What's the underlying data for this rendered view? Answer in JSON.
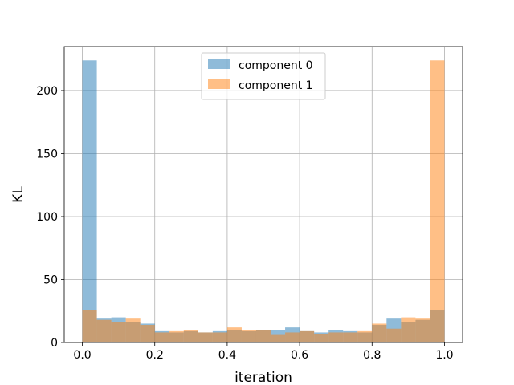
{
  "chart_data": {
    "type": "bar",
    "subtype": "histogram-overlay",
    "xlabel": "iteration",
    "ylabel": "KL",
    "xlim": [
      -0.05,
      1.05
    ],
    "ylim": [
      0,
      235
    ],
    "xticks": [
      0.0,
      0.2,
      0.4,
      0.6,
      0.8,
      1.0
    ],
    "xtick_labels": [
      "0.0",
      "0.2",
      "0.4",
      "0.6",
      "0.8",
      "1.0"
    ],
    "yticks": [
      0,
      50,
      100,
      150,
      200
    ],
    "ytick_labels": [
      "0",
      "50",
      "100",
      "150",
      "200"
    ],
    "grid": true,
    "legend_position": "top-center",
    "bin_edges": [
      0.0,
      0.04,
      0.08,
      0.12,
      0.16,
      0.2,
      0.24,
      0.28,
      0.32,
      0.36,
      0.4,
      0.44,
      0.48,
      0.52,
      0.56,
      0.6,
      0.64,
      0.68,
      0.72,
      0.76,
      0.8,
      0.84,
      0.88,
      0.92,
      0.96,
      1.0
    ],
    "series": [
      {
        "name": "component 0",
        "color": "#1f77b4",
        "values": [
          224,
          19,
          20,
          16,
          15,
          9,
          8,
          9,
          8,
          9,
          10,
          9,
          10,
          10,
          12,
          9,
          8,
          10,
          9,
          8,
          14,
          19,
          16,
          18,
          26
        ]
      },
      {
        "name": "component 1",
        "color": "#ff7f0e",
        "values": [
          26,
          18,
          16,
          19,
          14,
          8,
          9,
          10,
          8,
          8,
          12,
          10,
          10,
          6,
          8,
          9,
          7,
          8,
          8,
          9,
          15,
          11,
          20,
          19,
          224
        ]
      }
    ]
  }
}
